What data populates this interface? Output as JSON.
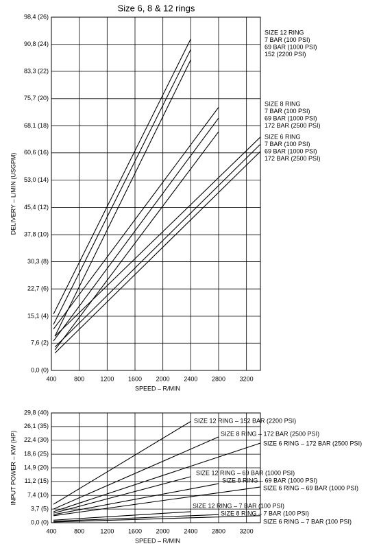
{
  "chart_data": [
    {
      "type": "line",
      "title": "Size 6, 8 & 12 rings",
      "xlabel": "SPEED – R/MIN",
      "ylabel": "DELIVERY – L/MIN (USGPM)",
      "xlim": [
        400,
        3400
      ],
      "ylim": [
        0,
        98.4
      ],
      "xticks": [
        400,
        800,
        1200,
        1600,
        2000,
        2400,
        2800,
        3200
      ],
      "yticks": [
        {
          "value": 0,
          "label": "0,0 (0)"
        },
        {
          "value": 7.6,
          "label": "7,6 (2)"
        },
        {
          "value": 15.1,
          "label": "15,1 (4)"
        },
        {
          "value": 22.7,
          "label": "22,7 (6)"
        },
        {
          "value": 30.3,
          "label": "30,3 (8)"
        },
        {
          "value": 37.8,
          "label": "37,8 (10)"
        },
        {
          "value": 45.4,
          "label": "45,4 (12)"
        },
        {
          "value": 53.0,
          "label": "53,0 (14)"
        },
        {
          "value": 60.6,
          "label": "60,6 (16)"
        },
        {
          "value": 68.1,
          "label": "68,1 (18)"
        },
        {
          "value": 75.7,
          "label": "75,7 (20)"
        },
        {
          "value": 83.3,
          "label": "83,3 (22)"
        },
        {
          "value": 90.8,
          "label": "90,8 (24)"
        },
        {
          "value": 98.4,
          "label": "98,4 (26)"
        }
      ],
      "grid": true,
      "groups": [
        {
          "name": "SIZE 12 RING",
          "series": [
            {
              "name": "7 BAR (100 PSI)",
              "color": "#000000",
              "x": [
                430,
                2400
              ],
              "values": [
                15.7,
                92.3
              ]
            },
            {
              "name": "69 BAR (1000 PSI)",
              "color": "#000000",
              "x": [
                430,
                2400
              ],
              "values": [
                12.8,
                89.4
              ]
            },
            {
              "name": "152 (2200 PSI)",
              "color": "#000000",
              "x": [
                450,
                2400
              ],
              "values": [
                9.5,
                86.5
              ]
            }
          ]
        },
        {
          "name": "SIZE 8 RING",
          "series": [
            {
              "name": "7 BAR (100 PSI)",
              "color": "#000000",
              "x": [
                430,
                2800
              ],
              "values": [
                11.5,
                73.3
              ]
            },
            {
              "name": "69 BAR (1000 PSI)",
              "color": "#000000",
              "x": [
                430,
                2800
              ],
              "values": [
                8.2,
                70.3
              ]
            },
            {
              "name": "172 BAR (2500 PSI)",
              "color": "#000000",
              "x": [
                450,
                2800
              ],
              "values": [
                5.7,
                66.5
              ]
            }
          ]
        },
        {
          "name": "SIZE 6 RING",
          "series": [
            {
              "name": "7 BAR (100 PSI)",
              "color": "#000000",
              "x": [
                450,
                3400
              ],
              "values": [
                9.5,
                65.0
              ]
            },
            {
              "name": "69 BAR (1000 PSI)",
              "color": "#000000",
              "x": [
                450,
                3400
              ],
              "values": [
                6.5,
                63.0
              ]
            },
            {
              "name": "172 BAR (2500 PSI)",
              "color": "#000000",
              "x": [
                450,
                3400
              ],
              "values": [
                4.8,
                61.0
              ]
            }
          ]
        }
      ]
    },
    {
      "type": "line",
      "xlabel": "SPEED – R/MIN",
      "ylabel": "INPUT POWER – KW (HP)",
      "xlim": [
        400,
        3400
      ],
      "ylim": [
        0,
        29.8
      ],
      "xticks": [
        400,
        800,
        1200,
        1600,
        2000,
        2400,
        2800,
        3200
      ],
      "yticks": [
        {
          "value": 0,
          "label": "0,0 (0)"
        },
        {
          "value": 3.7,
          "label": "3,7 (5)"
        },
        {
          "value": 7.4,
          "label": "7,4 (10)"
        },
        {
          "value": 11.2,
          "label": "11,2 (15)"
        },
        {
          "value": 14.9,
          "label": "14,9 (20)"
        },
        {
          "value": 18.6,
          "label": "18,6 (25)"
        },
        {
          "value": 22.4,
          "label": "22,4 (30)"
        },
        {
          "value": 26.1,
          "label": "26,1 (35)"
        },
        {
          "value": 29.8,
          "label": "29,8 (40)"
        }
      ],
      "grid": true,
      "series": [
        {
          "name": "SIZE 12 RING – 152 BAR (2200 PSI)",
          "color": "#000000",
          "x": [
            430,
            2400
          ],
          "values": [
            5.0,
            27.5
          ]
        },
        {
          "name": "SIZE 8 RING – 172 BAR (2500 PSI)",
          "color": "#000000",
          "x": [
            430,
            2800
          ],
          "values": [
            3.7,
            23.3
          ]
        },
        {
          "name": "SIZE 6 RING – 172 BAR (2500 PSI)",
          "color": "#000000",
          "x": [
            430,
            3400
          ],
          "values": [
            3.0,
            21.6
          ]
        },
        {
          "name": "SIZE 12 RING – 69 BAR (1000 PSI)",
          "color": "#000000",
          "x": [
            430,
            2400
          ],
          "values": [
            2.6,
            12.5
          ]
        },
        {
          "name": "SIZE 8 RING – 69 BAR (1000 PSI)",
          "color": "#000000",
          "x": [
            430,
            2800
          ],
          "values": [
            2.2,
            10.6
          ]
        },
        {
          "name": "SIZE 6 RING – 69 BAR (1000 PSI)",
          "color": "#000000",
          "x": [
            430,
            3400
          ],
          "values": [
            1.9,
            9.7
          ]
        },
        {
          "name": "SIZE 12 RING – 7 BAR (100 PSI)",
          "color": "#000000",
          "x": [
            430,
            2400
          ],
          "values": [
            0.7,
            3.0
          ]
        },
        {
          "name": "SIZE 8 RING – 7 BAR (100 PSI)",
          "color": "#000000",
          "x": [
            430,
            2800
          ],
          "values": [
            0.4,
            2.2
          ]
        },
        {
          "name": "SIZE 6 RING – 7 BAR (100 PSI)",
          "color": "#000000",
          "x": [
            430,
            3400
          ],
          "values": [
            0.2,
            1.9
          ]
        }
      ]
    }
  ]
}
